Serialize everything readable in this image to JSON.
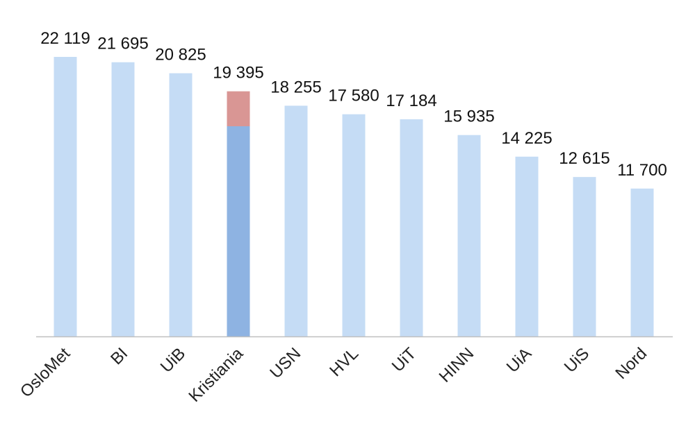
{
  "chart_data": {
    "type": "bar",
    "categories": [
      "OsloMet",
      "BI",
      "UiB",
      "Kristiania",
      "USN",
      "HVL",
      "UiT",
      "HINN",
      "UiA",
      "UiS",
      "Nord"
    ],
    "values": [
      22119,
      21695,
      20825,
      19395,
      18255,
      17580,
      17184,
      15935,
      14225,
      12615,
      11700
    ],
    "value_labels": [
      "22 119",
      "21 695",
      "20 825",
      "19 395",
      "18 255",
      "17 580",
      "17 184",
      "15 935",
      "14 225",
      "12 615",
      "11 700"
    ],
    "highlight": {
      "category": "Kristiania",
      "base_value": 16630,
      "base_color": "#8EB3E2",
      "top_color": "#D99694"
    },
    "bar_color": "#C5DCF5",
    "axis_color": "#BFBFBF",
    "title": "",
    "xlabel": "",
    "ylabel": "",
    "ylim": [
      0,
      22119
    ],
    "grid": false,
    "legend": "none"
  }
}
